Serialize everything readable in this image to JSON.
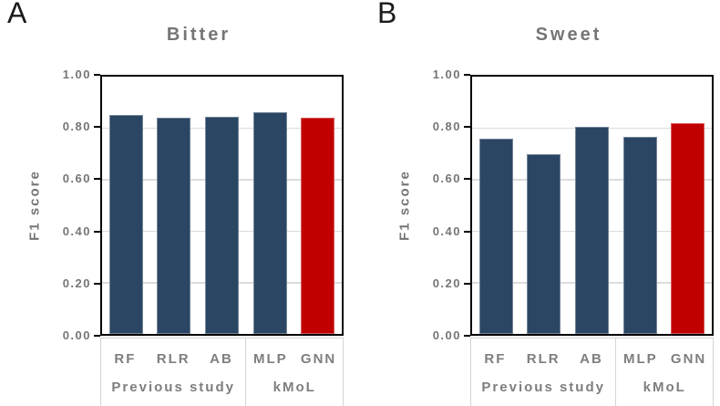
{
  "chart_data": [
    {
      "type": "bar",
      "panel_label": "A",
      "title": "Bitter",
      "xlabel": "",
      "ylabel": "F1 score",
      "categories": [
        "RF",
        "RLR",
        "AB",
        "MLP",
        "GNN"
      ],
      "values": [
        0.85,
        0.84,
        0.845,
        0.86,
        0.84
      ],
      "groups": [
        {
          "label": "Previous study",
          "count": 3
        },
        {
          "label": "kMoL",
          "count": 2
        }
      ],
      "ylim": [
        0,
        1
      ],
      "ytick_labels": [
        "1.00",
        "0.80",
        "0.60",
        "0.40",
        "0.20",
        "0.00"
      ],
      "grid": true,
      "legend": "none",
      "highlight_category": "GNN",
      "bar_colors": [
        "#2A4663",
        "#2A4663",
        "#2A4663",
        "#2A4663",
        "#C00000"
      ]
    },
    {
      "type": "bar",
      "panel_label": "B",
      "title": "Sweet",
      "xlabel": "",
      "ylabel": "F1 score",
      "categories": [
        "RF",
        "RLR",
        "AB",
        "MLP",
        "GNN"
      ],
      "values": [
        0.76,
        0.7,
        0.805,
        0.765,
        0.82
      ],
      "groups": [
        {
          "label": "Previous study",
          "count": 3
        },
        {
          "label": "kMoL",
          "count": 2
        }
      ],
      "ylim": [
        0,
        1
      ],
      "ytick_labels": [
        "1.00",
        "0.80",
        "0.60",
        "0.40",
        "0.20",
        "0.00"
      ],
      "grid": true,
      "legend": "none",
      "highlight_category": "GNN",
      "bar_colors": [
        "#2A4663",
        "#2A4663",
        "#2A4663",
        "#2A4663",
        "#C00000"
      ]
    }
  ],
  "colors": {
    "bar_default": "#2A4663",
    "bar_highlight": "#C00000",
    "text_gray": "#757575",
    "gridline": "#DCDCDC",
    "axis": "#000000",
    "table_border": "#D4D4D4"
  }
}
